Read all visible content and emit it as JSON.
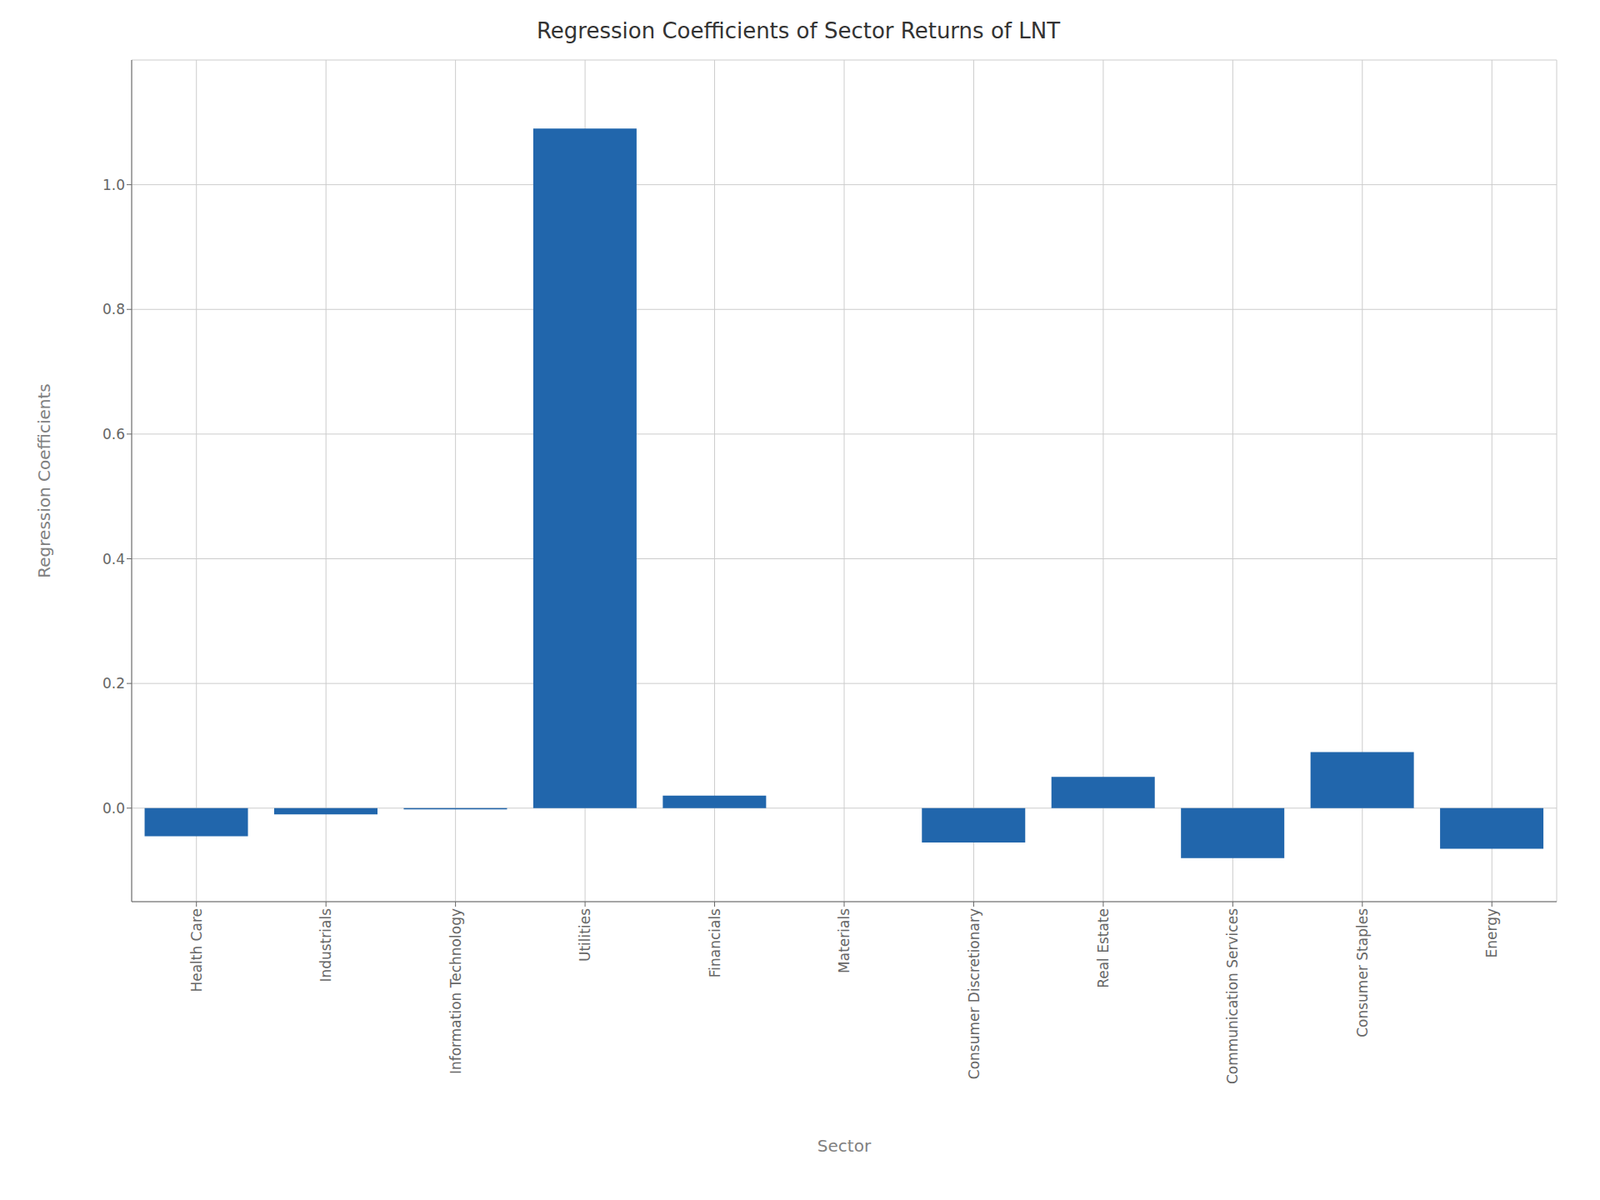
{
  "chart_data": {
    "type": "bar",
    "title": "Regression Coefficients of Sector Returns of LNT",
    "xlabel": "Sector",
    "ylabel": "Regression Coefficients",
    "categories": [
      "Health Care",
      "Industrials",
      "Information Technology",
      "Utilities",
      "Financials",
      "Materials",
      "Consumer Discretionary",
      "Real Estate",
      "Communication Services",
      "Consumer Staples",
      "Energy"
    ],
    "values": [
      -0.045,
      -0.01,
      -0.002,
      1.09,
      0.02,
      0.0,
      -0.055,
      0.05,
      -0.08,
      0.09,
      -0.065
    ],
    "color": "#2166ac",
    "ylim": [
      -0.15,
      1.2
    ],
    "yticks": [
      {
        "value": 0,
        "label": "0.0"
      },
      0.2,
      0.4,
      0.6,
      0.8,
      {
        "value": 1,
        "label": "1.0"
      }
    ],
    "grid": true
  }
}
